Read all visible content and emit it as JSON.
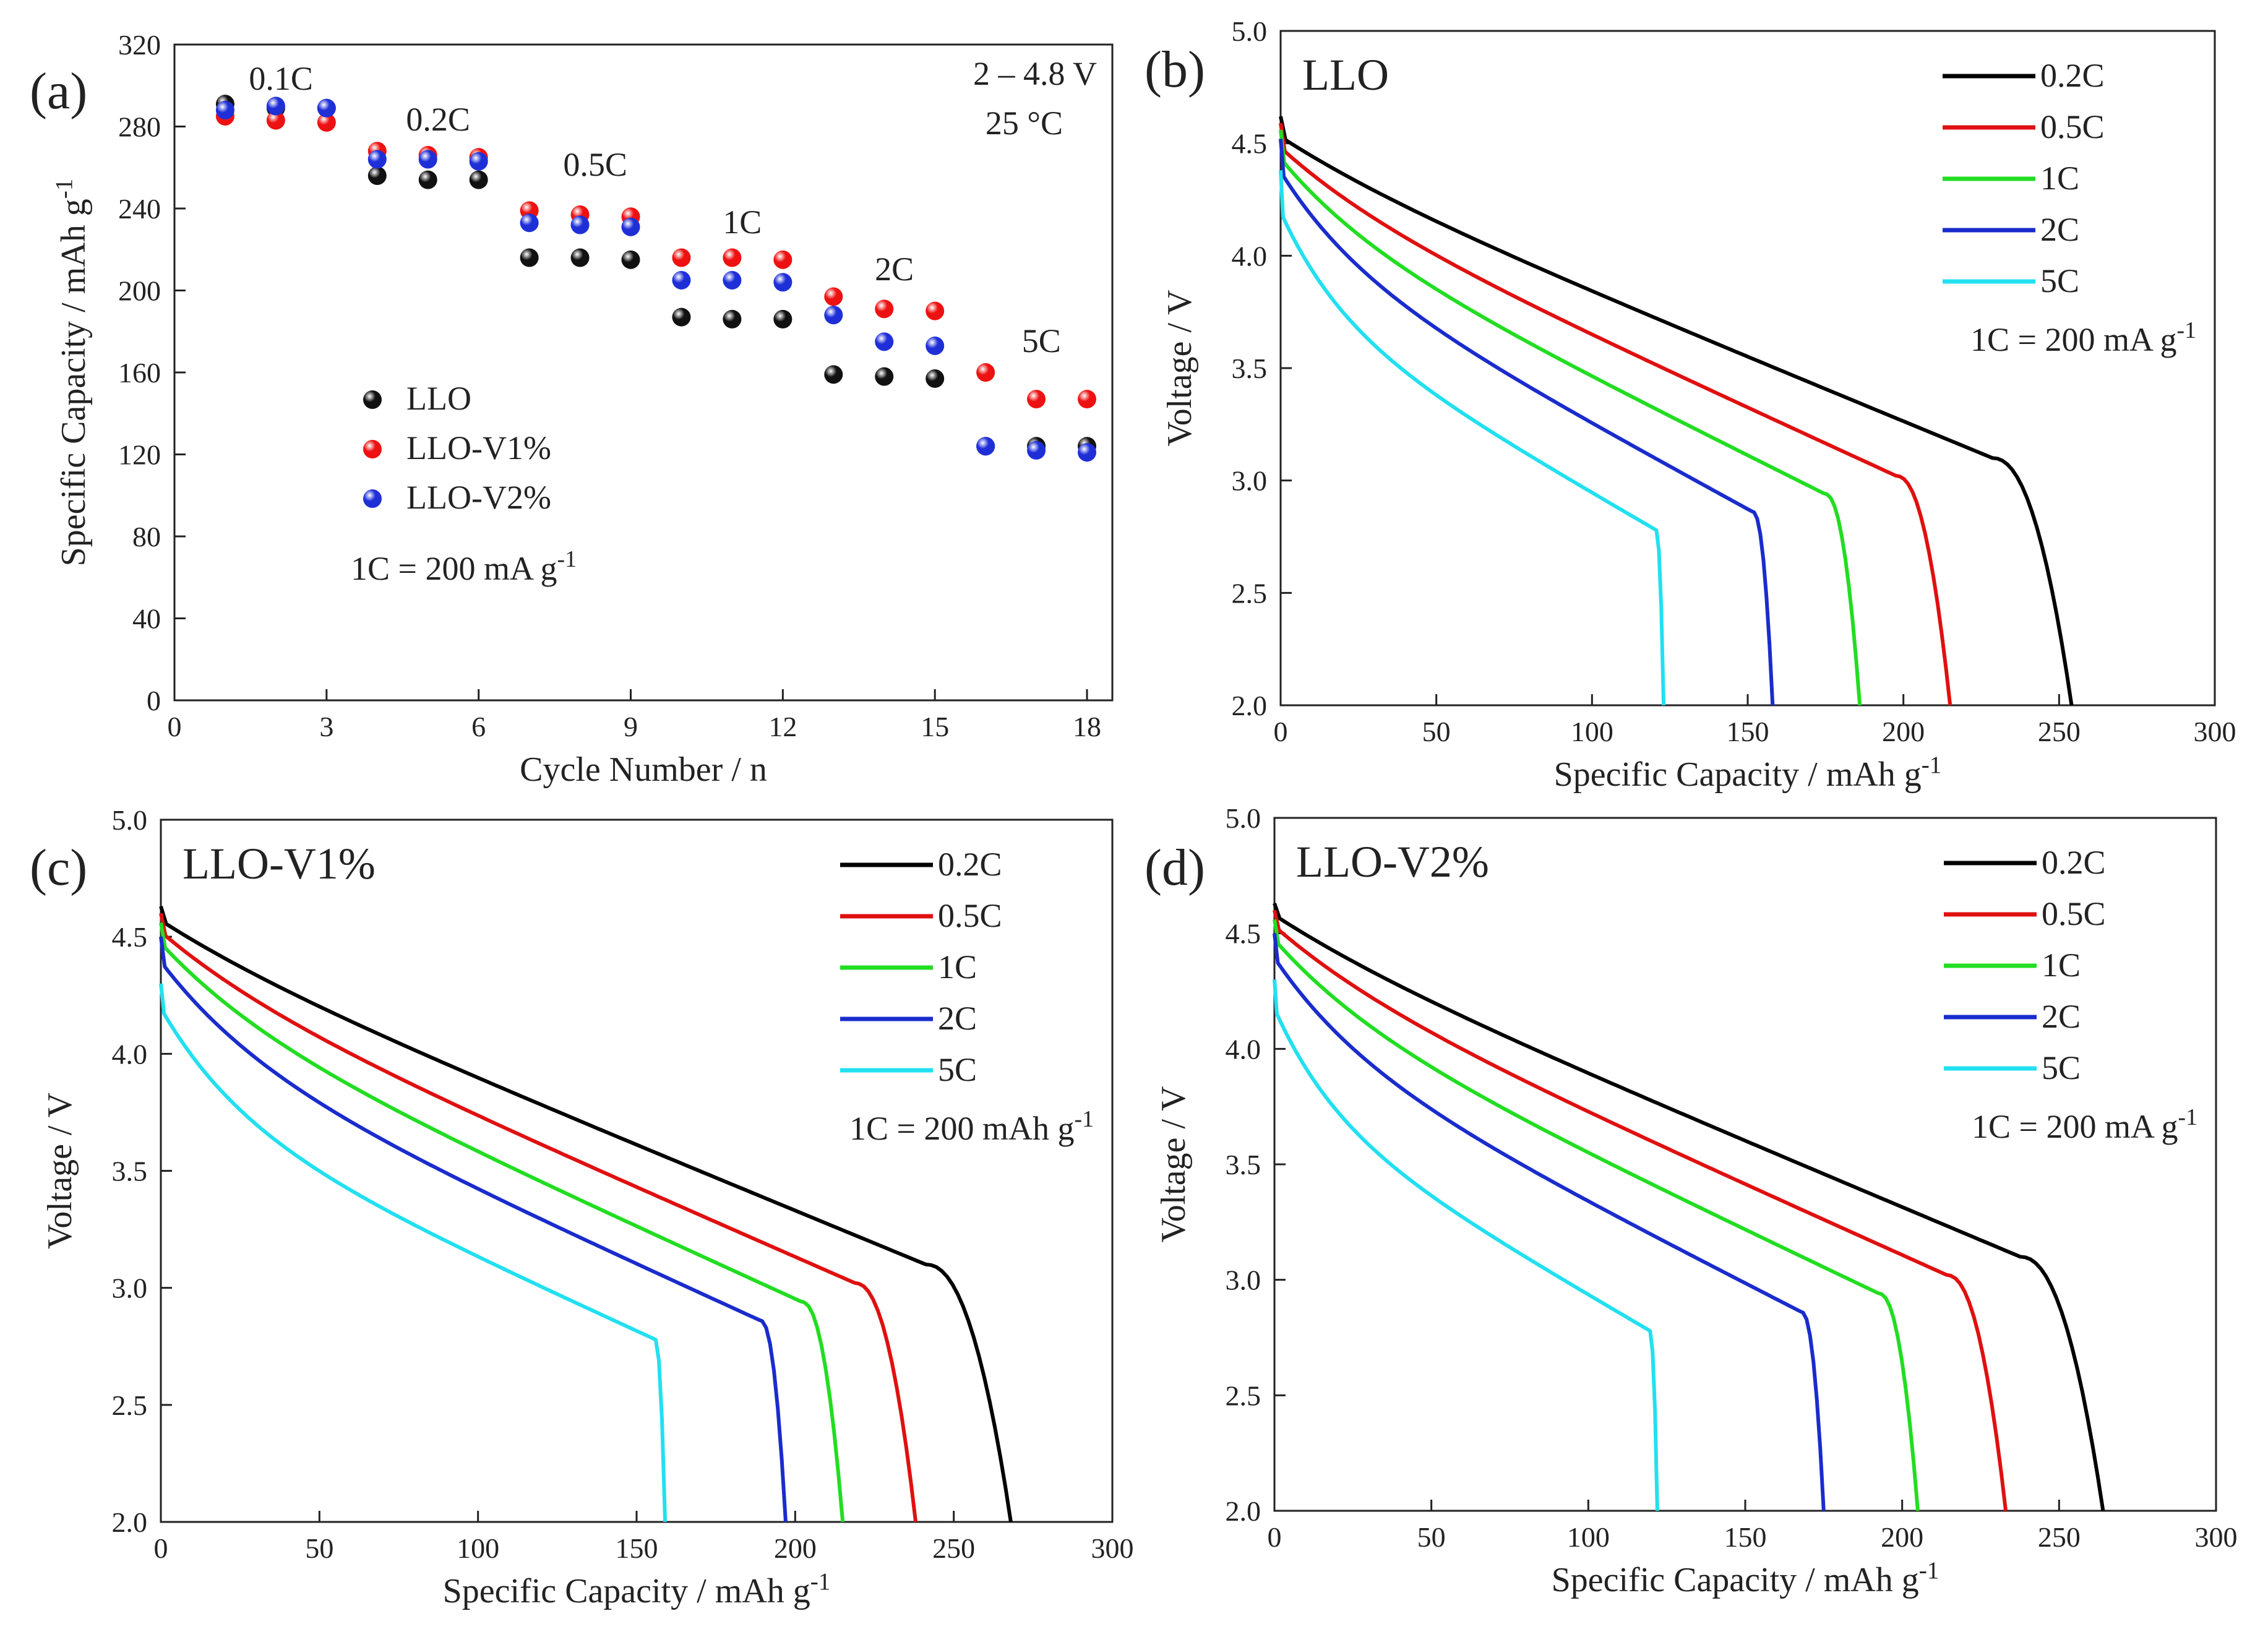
{
  "chart_data": [
    {
      "panel": "(a)",
      "type": "scatter",
      "title": "",
      "xlabel": "Cycle Number / n",
      "ylabel": "Specific Capacity / mAh g⁻¹",
      "xlim": [
        0,
        18.5
      ],
      "ylim": [
        0,
        320
      ],
      "xticks": [
        0,
        3,
        6,
        9,
        12,
        15,
        18
      ],
      "yticks": [
        0,
        40,
        80,
        120,
        160,
        200,
        240,
        280,
        320
      ],
      "annotations": [
        "2 – 4.8 V",
        "25 °C",
        "1C = 200 mA g⁻¹"
      ],
      "rate_labels": [
        {
          "text": "0.1C",
          "x": 2.1,
          "y": 298
        },
        {
          "text": "0.2C",
          "x": 5.2,
          "y": 278
        },
        {
          "text": "0.5C",
          "x": 8.3,
          "y": 256
        },
        {
          "text": "1C",
          "x": 11.2,
          "y": 228
        },
        {
          "text": "2C",
          "x": 14.2,
          "y": 205
        },
        {
          "text": "5C",
          "x": 17.1,
          "y": 170
        }
      ],
      "x": [
        1,
        2,
        3,
        4,
        5,
        6,
        7,
        8,
        9,
        10,
        11,
        12,
        13,
        14,
        15,
        16,
        17,
        18
      ],
      "series": [
        {
          "name": "LLO",
          "color": "#111111",
          "values": [
            291,
            289,
            289,
            256,
            254,
            254,
            216,
            216,
            215,
            187,
            186,
            186,
            159,
            158,
            157,
            124,
            124,
            124
          ]
        },
        {
          "name": "LLO-V1%",
          "color": "#ee1111",
          "values": [
            285,
            283,
            282,
            268,
            266,
            265,
            239,
            237,
            236,
            216,
            216,
            215,
            197,
            191,
            190,
            160,
            147,
            147
          ]
        },
        {
          "name": "LLO-V2%",
          "color": "#1f2fd8",
          "values": [
            288,
            290,
            289,
            264,
            264,
            263,
            233,
            232,
            231,
            205,
            205,
            204,
            188,
            175,
            173,
            124,
            122,
            121
          ]
        }
      ]
    },
    {
      "panel": "(b)",
      "type": "line",
      "title": "LLO",
      "xlabel": "Specific Capacity / mAh g⁻¹",
      "ylabel": "Voltage / V",
      "xlim": [
        0,
        300
      ],
      "ylim": [
        2.0,
        5.0
      ],
      "xticks": [
        0,
        50,
        100,
        150,
        200,
        250,
        300
      ],
      "yticks": [
        2.0,
        2.5,
        3.0,
        3.5,
        4.0,
        4.5,
        5.0
      ],
      "note": "1C = 200 mA g⁻¹",
      "series": [
        {
          "name": "0.2C",
          "color": "#000000",
          "capacity": 254,
          "v_start": 4.62,
          "v_ocv": 4.52
        },
        {
          "name": "0.5C",
          "color": "#e01010",
          "capacity": 215,
          "v_start": 4.59,
          "v_ocv": 4.47
        },
        {
          "name": "1C",
          "color": "#22dd22",
          "capacity": 186,
          "v_start": 4.56,
          "v_ocv": 4.42
        },
        {
          "name": "2C",
          "color": "#1a2ccc",
          "capacity": 158,
          "v_start": 4.52,
          "v_ocv": 4.36
        },
        {
          "name": "5C",
          "color": "#22e0f0",
          "capacity": 123,
          "v_start": 4.38,
          "v_ocv": 4.18
        }
      ]
    },
    {
      "panel": "(c)",
      "type": "line",
      "title": "LLO-V1%",
      "xlabel": "Specific Capacity / mAh g⁻¹",
      "ylabel": "Voltage / V",
      "xlim": [
        0,
        300
      ],
      "ylim": [
        2.0,
        5.0
      ],
      "xticks": [
        0,
        50,
        100,
        150,
        200,
        250,
        300
      ],
      "yticks": [
        2.0,
        2.5,
        3.0,
        3.5,
        4.0,
        4.5,
        5.0
      ],
      "note": "1C = 200 mAh g⁻¹",
      "series": [
        {
          "name": "0.2C",
          "color": "#000000",
          "capacity": 268,
          "v_start": 4.63,
          "v_ocv": 4.56
        },
        {
          "name": "0.5C",
          "color": "#e01010",
          "capacity": 238,
          "v_start": 4.6,
          "v_ocv": 4.51
        },
        {
          "name": "1C",
          "color": "#22dd22",
          "capacity": 215,
          "v_start": 4.56,
          "v_ocv": 4.46
        },
        {
          "name": "2C",
          "color": "#1a2ccc",
          "capacity": 197,
          "v_start": 4.5,
          "v_ocv": 4.38
        },
        {
          "name": "5C",
          "color": "#22e0f0",
          "capacity": 159,
          "v_start": 4.3,
          "v_ocv": 4.18
        }
      ]
    },
    {
      "panel": "(d)",
      "type": "line",
      "title": "LLO-V2%",
      "xlabel": "Specific Capacity / mAh g⁻¹",
      "ylabel": "Voltage / V",
      "xlim": [
        0,
        300
      ],
      "ylim": [
        2.0,
        5.0
      ],
      "xticks": [
        0,
        50,
        100,
        150,
        200,
        250,
        300
      ],
      "yticks": [
        2.0,
        2.5,
        3.0,
        3.5,
        4.0,
        4.5,
        5.0
      ],
      "note": "1C = 200 mA g⁻¹",
      "series": [
        {
          "name": "0.2C",
          "color": "#000000",
          "capacity": 264,
          "v_start": 4.63,
          "v_ocv": 4.57
        },
        {
          "name": "0.5C",
          "color": "#e01010",
          "capacity": 233,
          "v_start": 4.6,
          "v_ocv": 4.52
        },
        {
          "name": "1C",
          "color": "#22dd22",
          "capacity": 205,
          "v_start": 4.56,
          "v_ocv": 4.46
        },
        {
          "name": "2C",
          "color": "#1a2ccc",
          "capacity": 175,
          "v_start": 4.5,
          "v_ocv": 4.38
        },
        {
          "name": "5C",
          "color": "#22e0f0",
          "capacity": 122,
          "v_start": 4.3,
          "v_ocv": 4.16
        }
      ]
    }
  ]
}
